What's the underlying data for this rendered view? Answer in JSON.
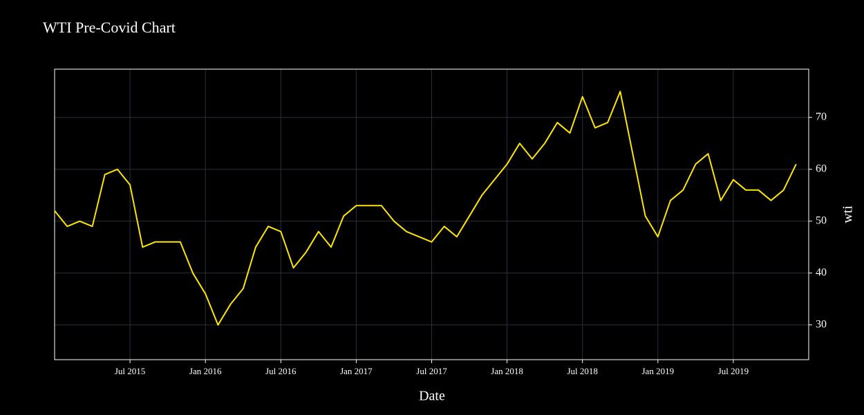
{
  "chart_data": {
    "type": "line",
    "title": "WTI Pre-Covid Chart",
    "x_label": "Date",
    "y_label": "wti",
    "x": [
      "2015-01",
      "2015-02",
      "2015-03",
      "2015-04",
      "2015-05",
      "2015-06",
      "2015-07",
      "2015-08",
      "2015-09",
      "2015-10",
      "2015-11",
      "2015-12",
      "2016-01",
      "2016-02",
      "2016-03",
      "2016-04",
      "2016-05",
      "2016-06",
      "2016-07",
      "2016-08",
      "2016-09",
      "2016-10",
      "2016-11",
      "2016-12",
      "2017-01",
      "2017-02",
      "2017-03",
      "2017-04",
      "2017-05",
      "2017-06",
      "2017-07",
      "2017-08",
      "2017-09",
      "2017-10",
      "2017-11",
      "2017-12",
      "2018-01",
      "2018-02",
      "2018-03",
      "2018-04",
      "2018-05",
      "2018-06",
      "2018-07",
      "2018-08",
      "2018-09",
      "2018-10",
      "2018-11",
      "2018-12",
      "2019-01",
      "2019-02",
      "2019-03",
      "2019-04",
      "2019-05",
      "2019-06",
      "2019-07",
      "2019-08",
      "2019-09",
      "2019-10",
      "2019-11",
      "2019-12"
    ],
    "series": [
      {
        "name": "wti",
        "color": "#ffe600",
        "values": [
          52,
          49,
          50,
          49,
          59,
          60,
          57,
          45,
          46,
          46,
          46,
          40,
          36,
          30,
          34,
          37,
          45,
          49,
          48,
          41,
          44,
          48,
          45,
          51,
          53,
          53,
          53,
          50,
          48,
          47,
          46,
          49,
          47,
          51,
          55,
          58,
          61,
          65,
          62,
          65,
          69,
          67,
          74,
          68,
          69,
          75,
          63,
          51,
          47,
          54,
          56,
          61,
          63,
          54,
          58,
          56,
          56,
          54,
          56,
          61
        ]
      }
    ],
    "xlim": [
      "2015-01",
      "2020-01"
    ],
    "xticks": [
      {
        "value": "2015-07",
        "label": "Jul 2015"
      },
      {
        "value": "2016-01",
        "label": "Jan 2016"
      },
      {
        "value": "2016-07",
        "label": "Jul 2016"
      },
      {
        "value": "2017-01",
        "label": "Jan 2017"
      },
      {
        "value": "2017-07",
        "label": "Jul 2017"
      },
      {
        "value": "2018-01",
        "label": "Jan 2018"
      },
      {
        "value": "2018-07",
        "label": "Jul 2018"
      },
      {
        "value": "2019-01",
        "label": "Jan 2019"
      },
      {
        "value": "2019-07",
        "label": "Jul 2019"
      }
    ],
    "ylim": [
      23.3,
      79.3
    ],
    "yticks": [
      30,
      40,
      50,
      60,
      70
    ],
    "grid": true,
    "y_axis_side": "right"
  }
}
